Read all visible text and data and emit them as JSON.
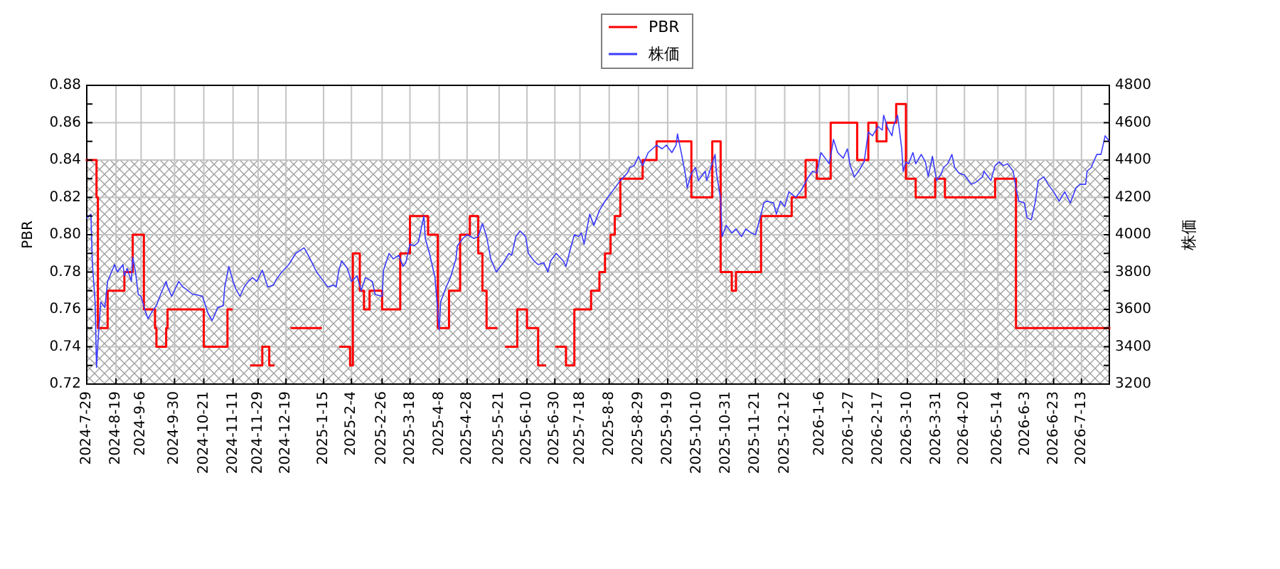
{
  "chart_data": {
    "type": "line",
    "ylabel": "PBR",
    "y2label": "株価",
    "xlim": [
      "2024-07-29",
      "2026-08-02"
    ],
    "xticks": [
      {
        "value": "2024-07-29",
        "label": "2024-7-29"
      },
      {
        "value": "2024-08-19",
        "label": "2024-8-19"
      },
      {
        "value": "2024-09-06",
        "label": "2024-9-6"
      },
      {
        "value": "2024-09-30",
        "label": "2024-9-30"
      },
      {
        "value": "2024-10-21",
        "label": "2024-10-21"
      },
      {
        "value": "2024-11-11",
        "label": "2024-11-11"
      },
      {
        "value": "2024-11-29",
        "label": "2024-11-29"
      },
      {
        "value": "2024-12-19",
        "label": "2024-12-19"
      },
      {
        "value": "2025-01-15",
        "label": "2025-1-15"
      },
      {
        "value": "2025-02-04",
        "label": "2025-2-4"
      },
      {
        "value": "2025-02-26",
        "label": "2025-2-26"
      },
      {
        "value": "2025-03-18",
        "label": "2025-3-18"
      },
      {
        "value": "2025-04-08",
        "label": "2025-4-8"
      },
      {
        "value": "2025-04-28",
        "label": "2025-4-28"
      },
      {
        "value": "2025-05-21",
        "label": "2025-5-21"
      },
      {
        "value": "2025-06-10",
        "label": "2025-6-10"
      },
      {
        "value": "2025-06-30",
        "label": "2025-6-30"
      },
      {
        "value": "2025-07-18",
        "label": "2025-7-18"
      },
      {
        "value": "2025-08-08",
        "label": "2025-8-8"
      },
      {
        "value": "2025-08-29",
        "label": "2025-8-29"
      },
      {
        "value": "2025-09-19",
        "label": "2025-9-19"
      },
      {
        "value": "2025-10-10",
        "label": "2025-10-10"
      },
      {
        "value": "2025-10-31",
        "label": "2025-10-31"
      },
      {
        "value": "2025-11-21",
        "label": "2025-11-21"
      },
      {
        "value": "2025-12-12",
        "label": "2025-12-12"
      },
      {
        "value": "2026-01-06",
        "label": "2026-1-6"
      },
      {
        "value": "2026-01-27",
        "label": "2026-1-27"
      },
      {
        "value": "2026-02-17",
        "label": "2026-2-17"
      },
      {
        "value": "2026-03-10",
        "label": "2026-3-10"
      },
      {
        "value": "2026-03-31",
        "label": "2026-3-31"
      },
      {
        "value": "2026-04-20",
        "label": "2026-4-20"
      },
      {
        "value": "2026-05-14",
        "label": "2026-5-14"
      },
      {
        "value": "2026-06-03",
        "label": "2026-6-3"
      },
      {
        "value": "2026-06-23",
        "label": "2026-6-23"
      },
      {
        "value": "2026-07-13",
        "label": "2026-7-13"
      }
    ],
    "ylim": [
      0.72,
      0.88
    ],
    "yticks": [
      0.72,
      {
        "value": 0.73,
        "label": null
      },
      0.74,
      {
        "value": 0.75,
        "label": null
      },
      0.76,
      {
        "value": 0.77,
        "label": null
      },
      0.78,
      {
        "value": 0.79,
        "label": null
      },
      {
        "value": 0.8,
        "label": "0.80"
      },
      {
        "value": 0.81,
        "label": null
      },
      0.82,
      {
        "value": 0.83,
        "label": null
      },
      0.84,
      {
        "value": 0.85,
        "label": null
      },
      0.86,
      {
        "value": 0.87,
        "label": null
      },
      0.88
    ],
    "y2lim": [
      3200,
      4800
    ],
    "y2ticks": [
      3200,
      {
        "value": 3300,
        "label": null
      },
      3400,
      {
        "value": 3500,
        "label": null
      },
      3600,
      {
        "value": 3700,
        "label": null
      },
      3800,
      {
        "value": 3900,
        "label": null
      },
      4000,
      {
        "value": 4100,
        "label": null
      },
      4200,
      {
        "value": 4300,
        "label": null
      },
      4400,
      {
        "value": 4500,
        "label": null
      },
      4600,
      {
        "value": 4700,
        "label": null
      },
      4800
    ],
    "grid": true,
    "legend": "top",
    "bands": [
      {
        "axis": "y",
        "from": 0.72,
        "to": 0.84,
        "color": "#a0a0a0"
      }
    ],
    "series": [
      {
        "name": "PBR",
        "type": "step",
        "color": "#ff0000",
        "x": [
          "2024-07-29",
          "2024-08-05",
          "2024-08-06",
          "2024-08-13",
          "2024-08-25",
          "2024-08-31",
          "2024-09-08",
          "2024-09-16",
          "2024-09-17",
          "2024-09-24",
          "2024-09-25",
          "2024-10-21",
          "2024-11-07",
          "2024-11-10",
          "2024-11-24",
          "2024-12-02",
          "2024-12-07",
          "2024-12-10",
          "2024-12-23",
          "2025-01-13",
          "2025-01-27",
          "2025-02-03",
          "2025-02-05",
          "2025-02-10",
          "2025-02-13",
          "2025-02-17",
          "2025-02-26",
          "2025-03-11",
          "2025-03-18",
          "2025-03-31",
          "2025-04-07",
          "2025-04-15",
          "2025-04-23",
          "2025-04-30",
          "2025-05-06",
          "2025-05-09",
          "2025-05-12",
          "2025-05-19",
          "2025-05-26",
          "2025-06-03",
          "2025-06-10",
          "2025-06-18",
          "2025-06-23",
          "2025-07-01",
          "2025-07-08",
          "2025-07-14",
          "2025-07-26",
          "2025-08-01",
          "2025-08-05",
          "2025-08-09",
          "2025-08-12",
          "2025-08-16",
          "2025-09-01",
          "2025-09-11",
          "2025-10-06",
          "2025-10-21",
          "2025-10-27",
          "2025-11-04",
          "2025-11-07",
          "2025-11-25",
          "2025-12-17",
          "2025-12-27",
          "2026-01-04",
          "2026-01-14",
          "2026-02-02",
          "2026-02-10",
          "2026-02-16",
          "2026-02-23",
          "2026-03-02",
          "2026-03-09",
          "2026-03-16",
          "2026-03-30",
          "2026-04-06",
          "2026-05-12",
          "2026-05-27",
          "2026-08-02"
        ],
        "values": [
          0.84,
          0.82,
          0.75,
          0.77,
          0.78,
          0.8,
          0.76,
          0.75,
          0.74,
          0.75,
          0.76,
          0.74,
          0.76,
          null,
          0.73,
          0.74,
          0.73,
          null,
          0.75,
          null,
          0.74,
          0.73,
          0.79,
          0.77,
          0.76,
          0.77,
          0.76,
          0.79,
          0.81,
          0.8,
          0.75,
          0.77,
          0.8,
          0.81,
          0.79,
          0.77,
          0.75,
          null,
          0.74,
          0.76,
          0.75,
          0.73,
          null,
          0.74,
          0.73,
          0.76,
          0.77,
          0.78,
          0.79,
          0.8,
          0.81,
          0.83,
          0.84,
          0.85,
          0.82,
          0.85,
          0.78,
          0.77,
          0.78,
          0.81,
          0.82,
          0.84,
          0.83,
          0.86,
          0.84,
          0.86,
          0.85,
          0.86,
          0.87,
          0.83,
          0.82,
          0.83,
          0.82,
          0.83,
          0.75,
          0.75
        ]
      },
      {
        "name": "株価",
        "axis": "y2",
        "color": "#3c3cff",
        "x": [
          "2024-07-29",
          "2024-08-01",
          "2024-08-02",
          "2024-08-04",
          "2024-08-05",
          "2024-08-06",
          "2024-08-08",
          "2024-08-11",
          "2024-08-13",
          "2024-08-18",
          "2024-08-20",
          "2024-08-24",
          "2024-08-25",
          "2024-08-27",
          "2024-08-30",
          "2024-08-31",
          "2024-09-02",
          "2024-09-04",
          "2024-09-06",
          "2024-09-09",
          "2024-09-11",
          "2024-09-14",
          "2024-09-17",
          "2024-09-20",
          "2024-09-24",
          "2024-09-25",
          "2024-09-28",
          "2024-10-03",
          "2024-10-06",
          "2024-10-08",
          "2024-10-13",
          "2024-10-15",
          "2024-10-20",
          "2024-10-24",
          "2024-10-27",
          "2024-10-31",
          "2024-11-04",
          "2024-11-05",
          "2024-11-08",
          "2024-11-11",
          "2024-11-13",
          "2024-11-16",
          "2024-11-19",
          "2024-11-22",
          "2024-11-25",
          "2024-11-28",
          "2024-12-02",
          "2024-12-06",
          "2024-12-10",
          "2024-12-12",
          "2024-12-16",
          "2024-12-21",
          "2024-12-26",
          "2025-01-01",
          "2025-01-04",
          "2025-01-10",
          "2025-01-15",
          "2025-01-18",
          "2025-01-22",
          "2025-01-24",
          "2025-01-26",
          "2025-01-28",
          "2025-02-01",
          "2025-02-04",
          "2025-02-08",
          "2025-02-11",
          "2025-02-14",
          "2025-02-19",
          "2025-02-21",
          "2025-02-26",
          "2025-02-27",
          "2025-03-03",
          "2025-03-06",
          "2025-03-10",
          "2025-03-13",
          "2025-03-15",
          "2025-03-18",
          "2025-03-21",
          "2025-03-24",
          "2025-03-28",
          "2025-03-29",
          "2025-04-01",
          "2025-04-05",
          "2025-04-08",
          "2025-04-09",
          "2025-04-13",
          "2025-04-16",
          "2025-04-20",
          "2025-04-21",
          "2025-04-25",
          "2025-04-28",
          "2025-05-03",
          "2025-05-06",
          "2025-05-09",
          "2025-05-12",
          "2025-05-15",
          "2025-05-19",
          "2025-05-24",
          "2025-05-28",
          "2025-05-30",
          "2025-06-02",
          "2025-06-05",
          "2025-06-09",
          "2025-06-11",
          "2025-06-15",
          "2025-06-18",
          "2025-06-22",
          "2025-06-25",
          "2025-06-27",
          "2025-07-01",
          "2025-07-06",
          "2025-07-08",
          "2025-07-11",
          "2025-07-14",
          "2025-07-17",
          "2025-07-19",
          "2025-07-21",
          "2025-07-25",
          "2025-07-28",
          "2025-08-01",
          "2025-08-05",
          "2025-08-09",
          "2025-08-14",
          "2025-08-16",
          "2025-08-21",
          "2025-08-23",
          "2025-08-26",
          "2025-08-29",
          "2025-09-01",
          "2025-09-05",
          "2025-09-08",
          "2025-09-11",
          "2025-09-15",
          "2025-09-18",
          "2025-09-22",
          "2025-09-25",
          "2025-09-26",
          "2025-09-29",
          "2025-10-02",
          "2025-10-03",
          "2025-10-06",
          "2025-10-09",
          "2025-10-11",
          "2025-10-16",
          "2025-10-17",
          "2025-10-20",
          "2025-10-23",
          "2025-10-24",
          "2025-10-27",
          "2025-10-28",
          "2025-10-31",
          "2025-11-04",
          "2025-11-07",
          "2025-11-11",
          "2025-11-14",
          "2025-11-18",
          "2025-11-21",
          "2025-11-24",
          "2025-11-27",
          "2025-11-29",
          "2025-12-04",
          "2025-12-06",
          "2025-12-09",
          "2025-12-12",
          "2025-12-15",
          "2025-12-20",
          "2025-12-24",
          "2025-12-29",
          "2026-01-01",
          "2026-01-04",
          "2026-01-07",
          "2026-01-12",
          "2026-01-13",
          "2026-01-16",
          "2026-01-19",
          "2026-01-23",
          "2026-01-26",
          "2026-01-28",
          "2026-01-31",
          "2026-02-03",
          "2026-02-07",
          "2026-02-10",
          "2026-02-13",
          "2026-02-17",
          "2026-02-20",
          "2026-02-21",
          "2026-02-24",
          "2026-02-27",
          "2026-02-28",
          "2026-03-03",
          "2026-03-06",
          "2026-03-07",
          "2026-03-09",
          "2026-03-11",
          "2026-03-14",
          "2026-03-16",
          "2026-03-20",
          "2026-03-23",
          "2026-03-25",
          "2026-03-28",
          "2026-03-31",
          "2026-04-03",
          "2026-04-05",
          "2026-04-08",
          "2026-04-11",
          "2026-04-13",
          "2026-04-16",
          "2026-04-20",
          "2026-04-25",
          "2026-04-28",
          "2026-05-03",
          "2026-05-04",
          "2026-05-09",
          "2026-05-12",
          "2026-05-15",
          "2026-05-18",
          "2026-05-21",
          "2026-05-25",
          "2026-05-27",
          "2026-05-29",
          "2026-06-02",
          "2026-06-04",
          "2026-06-07",
          "2026-06-10",
          "2026-06-12",
          "2026-06-16",
          "2026-06-19",
          "2026-06-23",
          "2026-06-27",
          "2026-07-01",
          "2026-07-05",
          "2026-07-09",
          "2026-07-12",
          "2026-07-16",
          "2026-07-17",
          "2026-07-20",
          "2026-07-24",
          "2026-07-27",
          "2026-07-30",
          "2026-08-02"
        ],
        "values": [
          4090,
          4110,
          3850,
          3640,
          3290,
          3420,
          3640,
          3610,
          3750,
          3840,
          3800,
          3840,
          3780,
          3820,
          3750,
          3880,
          3800,
          3680,
          3670,
          3590,
          3550,
          3590,
          3620,
          3680,
          3750,
          3720,
          3670,
          3750,
          3720,
          3710,
          3680,
          3680,
          3670,
          3580,
          3540,
          3610,
          3620,
          3720,
          3830,
          3750,
          3710,
          3670,
          3720,
          3750,
          3770,
          3750,
          3810,
          3720,
          3730,
          3760,
          3800,
          3840,
          3900,
          3930,
          3890,
          3800,
          3750,
          3720,
          3730,
          3720,
          3810,
          3860,
          3820,
          3750,
          3780,
          3700,
          3770,
          3750,
          3680,
          3670,
          3810,
          3900,
          3870,
          3890,
          3830,
          3850,
          3950,
          3940,
          3960,
          4100,
          3980,
          3900,
          3770,
          3490,
          3640,
          3720,
          3770,
          3870,
          3940,
          3980,
          4000,
          3980,
          3990,
          4060,
          3990,
          3870,
          3800,
          3850,
          3900,
          3890,
          3990,
          4020,
          3990,
          3900,
          3860,
          3840,
          3850,
          3800,
          3860,
          3900,
          3860,
          3830,
          3920,
          4000,
          3990,
          4010,
          3950,
          4110,
          4050,
          4130,
          4180,
          4220,
          4270,
          4290,
          4330,
          4360,
          4370,
          4420,
          4370,
          4440,
          4460,
          4480,
          4460,
          4480,
          4440,
          4480,
          4540,
          4430,
          4310,
          4250,
          4330,
          4360,
          4290,
          4340,
          4290,
          4360,
          4430,
          4330,
          4190,
          3990,
          4050,
          4010,
          4030,
          3990,
          4030,
          4010,
          4000,
          4080,
          4170,
          4180,
          4170,
          4110,
          4180,
          4150,
          4230,
          4200,
          4240,
          4310,
          4340,
          4330,
          4440,
          4390,
          4380,
          4510,
          4440,
          4410,
          4460,
          4370,
          4310,
          4340,
          4390,
          4550,
          4530,
          4580,
          4560,
          4640,
          4570,
          4530,
          4580,
          4640,
          4460,
          4340,
          4390,
          4380,
          4440,
          4380,
          4430,
          4390,
          4310,
          4420,
          4290,
          4320,
          4360,
          4380,
          4430,
          4360,
          4330,
          4320,
          4270,
          4280,
          4310,
          4340,
          4290,
          4370,
          4390,
          4370,
          4380,
          4340,
          4250,
          4180,
          4170,
          4090,
          4080,
          4180,
          4290,
          4310,
          4270,
          4230,
          4180,
          4230,
          4170,
          4250,
          4270,
          4270,
          4340,
          4360,
          4430,
          4430,
          4530,
          4500
        ]
      }
    ]
  }
}
